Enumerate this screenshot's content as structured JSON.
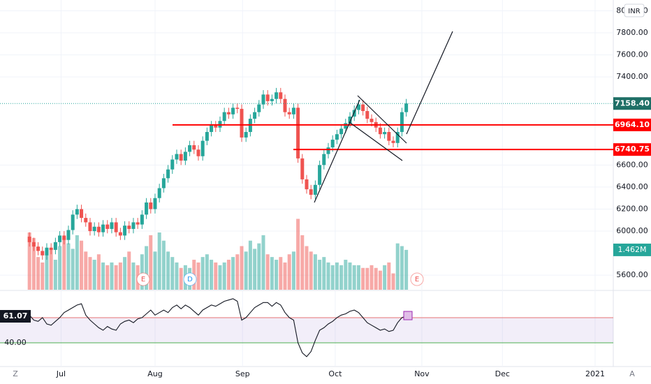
{
  "chart_data": {
    "type": "candlestick",
    "currency": "INR",
    "xlim": [
      -6.8,
      134.8
    ],
    "xticks": [
      {
        "value": 7.3,
        "label": "Jul"
      },
      {
        "value": 29,
        "label": "Aug"
      },
      {
        "value": 49.2,
        "label": "Sep"
      },
      {
        "value": 70.6,
        "label": "Oct"
      },
      {
        "value": 90.6,
        "label": "Nov"
      },
      {
        "value": 109.2,
        "label": "Dec"
      },
      {
        "value": 130.6,
        "label": "2021"
      }
    ],
    "ylim": [
      5468,
      8098
    ],
    "yticks": [
      {
        "value": 5600,
        "label": "5600.00"
      },
      {
        "value": 6000,
        "label": "6000.00"
      },
      {
        "value": 6200,
        "label": "6200.00"
      },
      {
        "value": 6400,
        "label": "6400.00"
      },
      {
        "value": 6600,
        "label": "6600.00"
      },
      {
        "value": 7400,
        "label": "7400.00"
      },
      {
        "value": 7600,
        "label": "7600.00"
      },
      {
        "value": 7800,
        "label": "7800.00"
      },
      {
        "value": 8000,
        "label": "8000.00"
      }
    ],
    "grid": true,
    "up_color": "#26a69a",
    "down_color": "#ef5350",
    "open": [
      5950,
      5900,
      5860,
      5820,
      5780,
      5850,
      5830,
      5900,
      5960,
      5920,
      6010,
      6150,
      6200,
      6120,
      6080,
      6000,
      6040,
      5990,
      6060,
      6020,
      6080,
      5990,
      5960,
      6050,
      6020,
      6080,
      6060,
      6150,
      6260,
      6200,
      6300,
      6390,
      6480,
      6560,
      6650,
      6700,
      6640,
      6720,
      6780,
      6740,
      6680,
      6820,
      6900,
      6960,
      6940,
      7000,
      7080,
      7060,
      7120,
      7110,
      6850,
      6900,
      7020,
      7080,
      7150,
      7240,
      7180,
      7200,
      7260,
      7200,
      7080,
      7060,
      7120,
      6660,
      6470,
      6380,
      6330,
      6420,
      6600,
      6700,
      6760,
      6830,
      6880,
      6930,
      6980,
      7040,
      7100,
      7150,
      7090,
      7020,
      6990,
      6940,
      6880,
      6900,
      6820,
      6800,
      6900,
      7080
    ],
    "high": [
      5990,
      5940,
      5900,
      5860,
      5890,
      5890,
      5940,
      6000,
      6000,
      6050,
      6190,
      6240,
      6240,
      6160,
      6120,
      6080,
      6080,
      6100,
      6100,
      6120,
      6120,
      6030,
      6090,
      6090,
      6120,
      6120,
      6190,
      6300,
      6300,
      6340,
      6430,
      6520,
      6600,
      6690,
      6740,
      6740,
      6760,
      6820,
      6820,
      6780,
      6860,
      6940,
      7000,
      7000,
      7040,
      7120,
      7120,
      7160,
      7160,
      7150,
      6940,
      7060,
      7120,
      7190,
      7280,
      7280,
      7240,
      7300,
      7300,
      7240,
      7120,
      7160,
      7160,
      6700,
      6510,
      6420,
      6460,
      6640,
      6740,
      6800,
      6870,
      6920,
      6970,
      7020,
      7080,
      7140,
      7190,
      7190,
      7130,
      7060,
      7030,
      6980,
      6940,
      6940,
      6860,
      6940,
      7120,
      7200
    ],
    "low": [
      5860,
      5820,
      5780,
      5740,
      5740,
      5790,
      5790,
      5860,
      5880,
      5880,
      5970,
      6110,
      6080,
      6040,
      5960,
      5960,
      5950,
      5950,
      5980,
      5980,
      5950,
      5920,
      5920,
      5980,
      5980,
      6020,
      6020,
      6110,
      6160,
      6160,
      6260,
      6350,
      6440,
      6520,
      6610,
      6600,
      6600,
      6680,
      6700,
      6640,
      6640,
      6780,
      6860,
      6900,
      6900,
      6960,
      7020,
      7020,
      7070,
      6810,
      6810,
      6860,
      6980,
      7040,
      7110,
      7140,
      7140,
      7160,
      7160,
      7040,
      7020,
      7020,
      6620,
      6430,
      6340,
      6290,
      6290,
      6380,
      6560,
      6660,
      6720,
      6790,
      6840,
      6890,
      6940,
      7000,
      7060,
      7050,
      6980,
      6950,
      6900,
      6840,
      6840,
      6780,
      6760,
      6760,
      6860,
      7040
    ],
    "close": [
      5900,
      5860,
      5820,
      5780,
      5850,
      5830,
      5900,
      5960,
      5920,
      6010,
      6150,
      6200,
      6120,
      6080,
      6000,
      6040,
      5990,
      6060,
      6020,
      6080,
      5990,
      5960,
      6050,
      6020,
      6080,
      6060,
      6150,
      6260,
      6200,
      6300,
      6390,
      6480,
      6560,
      6650,
      6700,
      6640,
      6720,
      6780,
      6740,
      6680,
      6820,
      6900,
      6960,
      6940,
      7000,
      7080,
      7060,
      7120,
      7110,
      6850,
      6900,
      7020,
      7080,
      7150,
      7240,
      7180,
      7200,
      7260,
      7200,
      7080,
      7060,
      7120,
      6660,
      6470,
      6380,
      6330,
      6420,
      6600,
      6700,
      6760,
      6830,
      6880,
      6930,
      6980,
      7040,
      7100,
      7150,
      7090,
      7020,
      6990,
      6940,
      6880,
      6900,
      6820,
      6800,
      6900,
      7080,
      7158.4
    ],
    "volume": {
      "ylim": [
        0,
        4.25
      ],
      "last_label": "1.462M",
      "values": [
        2.1,
        1.9,
        1.2,
        1.0,
        1.3,
        1.5,
        1.1,
        1.6,
        1.9,
        1.7,
        1.5,
        2.0,
        1.8,
        1.4,
        1.2,
        1.1,
        1.3,
        1.0,
        0.9,
        1.0,
        0.9,
        1.0,
        1.2,
        1.4,
        1.0,
        0.9,
        1.3,
        1.6,
        2.0,
        1.4,
        2.1,
        1.8,
        1.4,
        1.2,
        1.0,
        0.8,
        0.9,
        0.8,
        1.1,
        1.0,
        1.2,
        1.3,
        1.1,
        1.0,
        0.9,
        1.0,
        1.1,
        1.2,
        1.3,
        1.6,
        1.4,
        1.8,
        1.5,
        1.7,
        2.0,
        1.3,
        1.2,
        1.1,
        1.2,
        1.0,
        1.3,
        1.4,
        2.6,
        2.0,
        1.6,
        1.4,
        1.3,
        1.1,
        1.2,
        1.0,
        0.9,
        1.0,
        0.9,
        1.1,
        1.0,
        0.9,
        0.9,
        0.8,
        0.8,
        0.9,
        0.8,
        0.7,
        0.9,
        1.0,
        0.6,
        1.7,
        1.6,
        1.462
      ]
    },
    "price_lines": [
      {
        "value": 7158.4,
        "label": "7158.40",
        "color": "#1e6f66"
      },
      {
        "value": 6964.1,
        "label": "6964.10",
        "color": "#ff0000"
      },
      {
        "value": 6740.75,
        "label": "6740.75",
        "color": "#ff0000"
      }
    ],
    "rsi": {
      "ylim": [
        23.9,
        80.5
      ],
      "band": [
        40,
        60
      ],
      "last_label": "61.07",
      "yticks": [
        {
          "value": 40,
          "label": "40.00"
        }
      ],
      "values": [
        62,
        58,
        57,
        60,
        55,
        54,
        57,
        60,
        64,
        66,
        68,
        70,
        71,
        62,
        58,
        55,
        52,
        50,
        53,
        51,
        50,
        55,
        57,
        58,
        56,
        59,
        60,
        63,
        66,
        62,
        64,
        66,
        64,
        68,
        70,
        67,
        70,
        68,
        65,
        62,
        66,
        68,
        70,
        69,
        71,
        73,
        74,
        75,
        73,
        58,
        60,
        64,
        68,
        70,
        72,
        72,
        69,
        72,
        70,
        64,
        60,
        58,
        40,
        32,
        29,
        33,
        42,
        50,
        52,
        55,
        57,
        60,
        62,
        63,
        65,
        66,
        64,
        60,
        56,
        54,
        52,
        50,
        51,
        49,
        50,
        56,
        60,
        61.07
      ]
    },
    "events": [
      "E",
      "D",
      "E"
    ]
  },
  "toolbar": {
    "left": "Z",
    "right": "A"
  }
}
